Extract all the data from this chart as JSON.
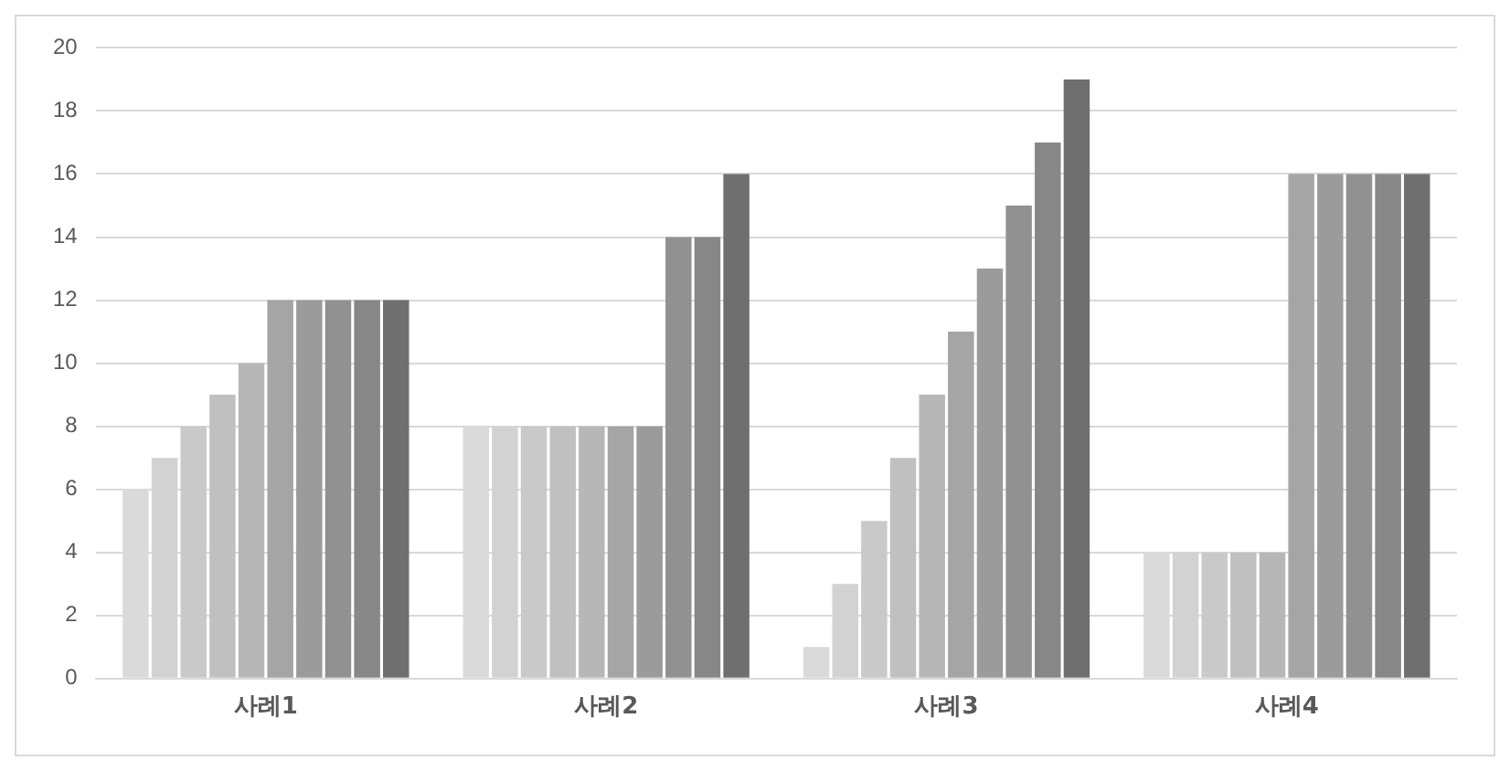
{
  "chart_data": {
    "type": "bar",
    "categories": [
      "사례1",
      "사례2",
      "사례3",
      "사례4"
    ],
    "series": [
      {
        "color": "#dadada",
        "values": [
          6,
          8,
          1,
          4
        ]
      },
      {
        "color": "#d2d2d2",
        "values": [
          7,
          8,
          3,
          4
        ]
      },
      {
        "color": "#c9c9c9",
        "values": [
          8,
          8,
          5,
          4
        ]
      },
      {
        "color": "#c0c0c0",
        "values": [
          9,
          8,
          7,
          4
        ]
      },
      {
        "color": "#b7b7b7",
        "values": [
          10,
          8,
          9,
          4
        ]
      },
      {
        "color": "#a5a5a5",
        "values": [
          12,
          8,
          11,
          16
        ]
      },
      {
        "color": "#9b9b9b",
        "values": [
          12,
          8,
          13,
          16
        ]
      },
      {
        "color": "#919191",
        "values": [
          12,
          14,
          15,
          16
        ]
      },
      {
        "color": "#878787",
        "values": [
          12,
          14,
          17,
          16
        ]
      },
      {
        "color": "#6f6f6f",
        "values": [
          12,
          16,
          19,
          16
        ]
      }
    ],
    "ylim": [
      0,
      20
    ],
    "yticks": [
      0,
      2,
      4,
      6,
      8,
      10,
      12,
      14,
      16,
      18,
      20
    ],
    "grid": "y",
    "legend": false
  }
}
